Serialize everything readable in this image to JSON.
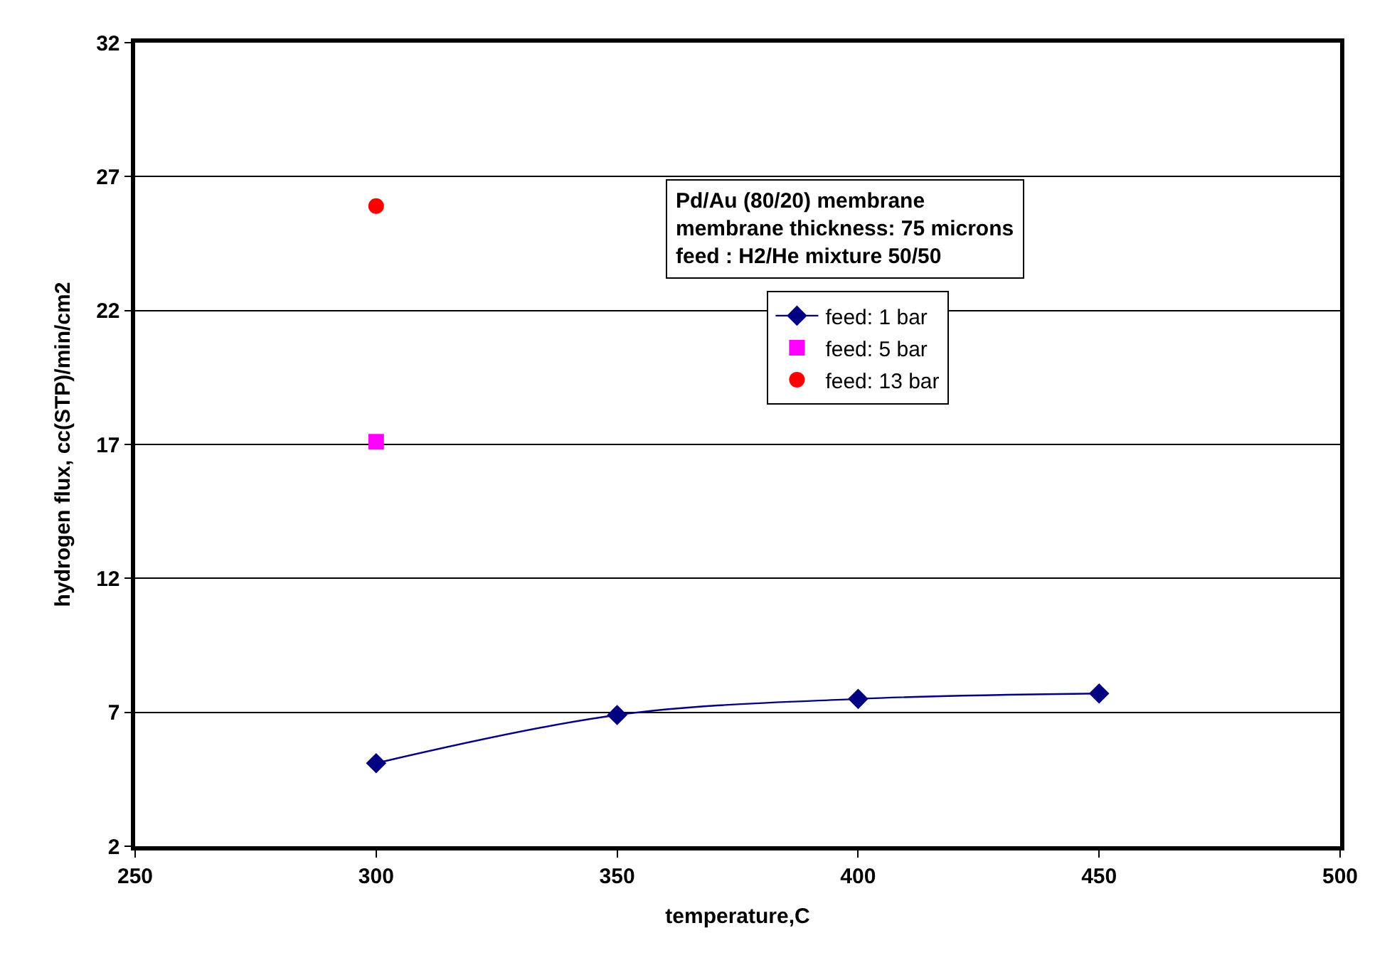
{
  "chart_data": {
    "type": "line",
    "xlabel": "temperature,C",
    "ylabel": "hydrogen flux, cc(STP)/min/cm2",
    "xlim": [
      250,
      500
    ],
    "xticks": [
      250,
      300,
      350,
      400,
      450,
      500
    ],
    "ylim": [
      2,
      32
    ],
    "yticks": [
      2,
      7,
      12,
      17,
      22,
      27,
      32
    ],
    "grid": "y",
    "legend": "center",
    "annotations": [
      "Pd/Au (80/20) membrane\nmembrane thickness: 75 microns\nfeed : H2/He mixture 50/50"
    ],
    "series": [
      {
        "name": "feed: 1 bar",
        "color": "#000080",
        "marker": "diamond",
        "x": [
          300,
          350,
          400,
          450
        ],
        "values": [
          5.1,
          6.9,
          7.5,
          7.7
        ]
      },
      {
        "name": "feed: 5 bar",
        "color": "#ff00ff",
        "marker": "square",
        "type": "scatter",
        "x": [
          300
        ],
        "values": [
          17.1
        ]
      },
      {
        "name": "feed: 13 bar",
        "color": "#ff0000",
        "marker": "circle",
        "type": "scatter",
        "x": [
          300
        ],
        "values": [
          25.9
        ]
      }
    ]
  }
}
